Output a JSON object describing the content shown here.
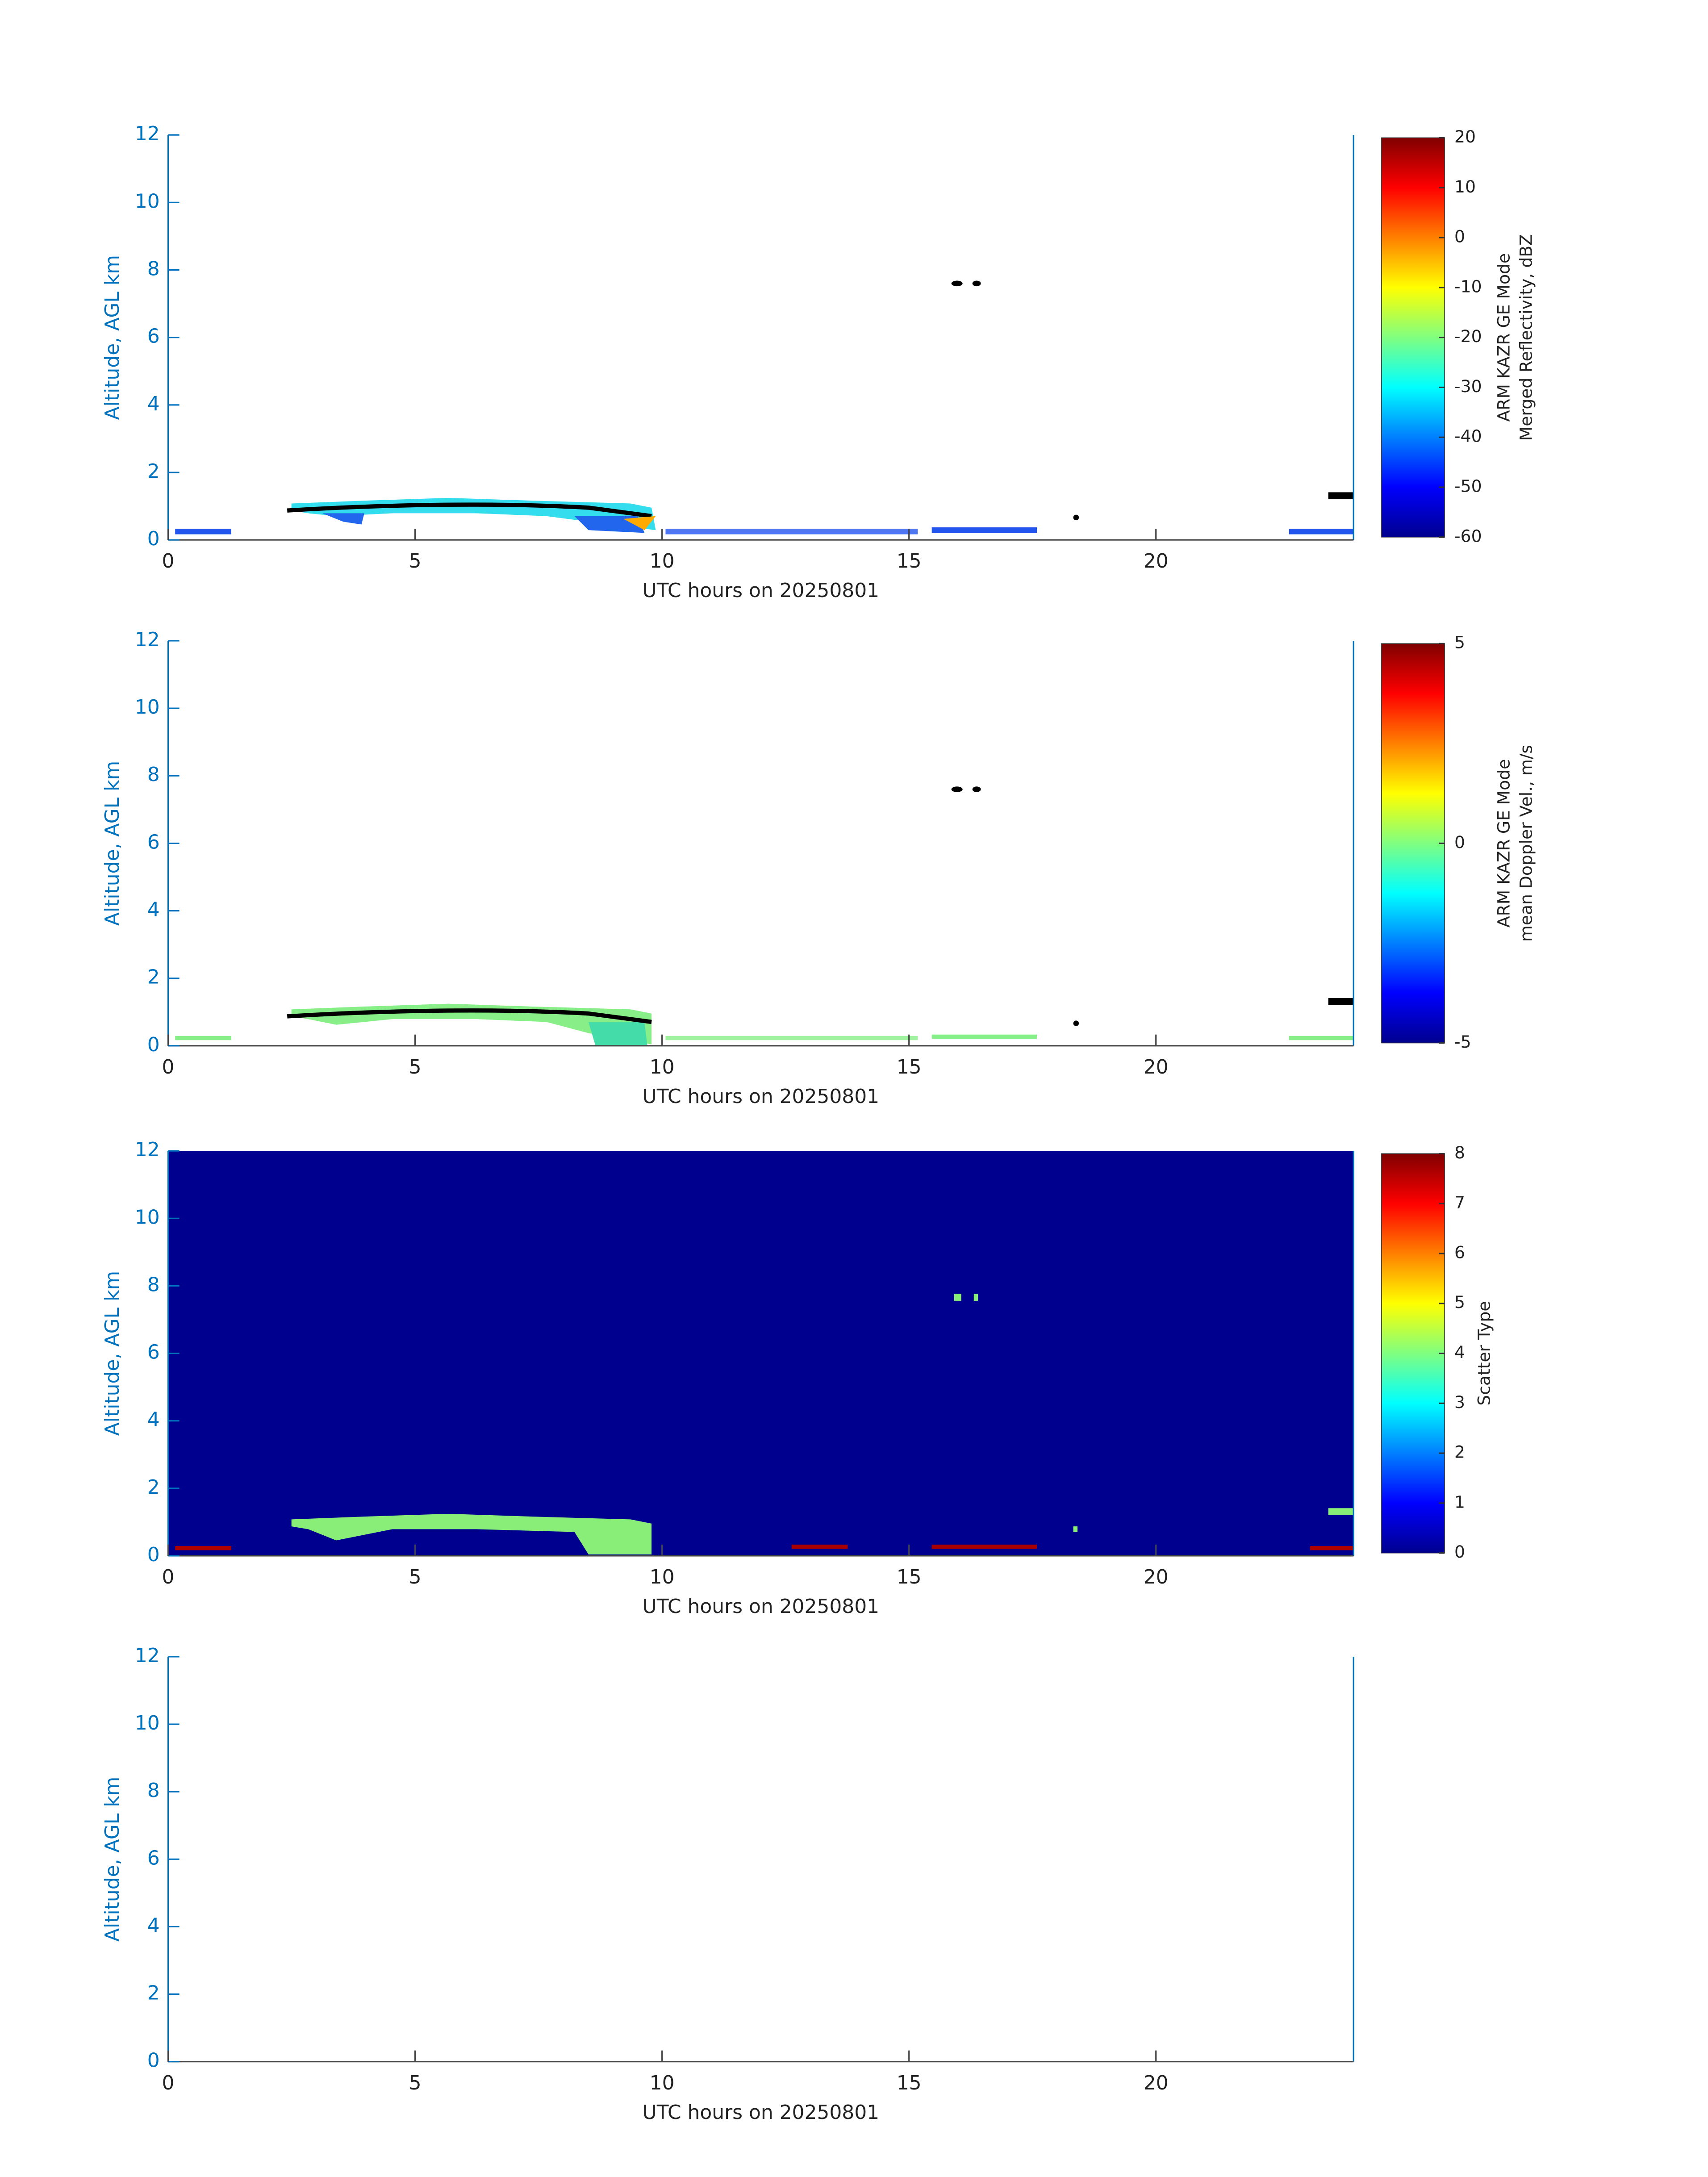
{
  "chart_data": [
    {
      "type": "heatmap",
      "xlabel": "UTC hours on 20250801",
      "ylabel": "Altitude, AGL km",
      "xlim": [
        0,
        24
      ],
      "ylim": [
        0,
        12
      ],
      "xticks": [
        0,
        5,
        10,
        15,
        20
      ],
      "yticks": [
        0,
        2,
        4,
        6,
        8,
        10,
        12
      ],
      "colormap": "jet",
      "colorbar": {
        "label": [
          "ARM KAZR GE Mode",
          "Merged Reflectivity, dBZ"
        ],
        "lim": [
          -60,
          20
        ],
        "ticks": [
          -60,
          -50,
          -40,
          -30,
          -20,
          -10,
          0,
          10,
          20
        ]
      }
    },
    {
      "type": "heatmap",
      "xlabel": "UTC hours on 20250801",
      "ylabel": "Altitude, AGL km",
      "xlim": [
        0,
        24
      ],
      "ylim": [
        0,
        12
      ],
      "xticks": [
        0,
        5,
        10,
        15,
        20
      ],
      "yticks": [
        0,
        2,
        4,
        6,
        8,
        10,
        12
      ],
      "colormap": "jet",
      "colorbar": {
        "label": [
          "ARM KAZR GE Mode",
          "mean Doppler Vel., m/s"
        ],
        "lim": [
          -5,
          5
        ],
        "ticks": [
          -5,
          0,
          5
        ]
      }
    },
    {
      "type": "heatmap",
      "xlabel": "UTC hours on 20250801",
      "ylabel": "Altitude, AGL km",
      "xlim": [
        0,
        24
      ],
      "ylim": [
        0,
        12
      ],
      "xticks": [
        0,
        5,
        10,
        15,
        20
      ],
      "yticks": [
        0,
        2,
        4,
        6,
        8,
        10,
        12
      ],
      "background_color": "#00008f",
      "colormap": "jet",
      "colorbar": {
        "label": [
          "Scatter Type"
        ],
        "lim": [
          0,
          8
        ],
        "ticks": [
          0,
          1,
          2,
          3,
          4,
          5,
          6,
          7,
          8
        ]
      }
    },
    {
      "type": "heatmap",
      "xlabel": "UTC hours on 20250801",
      "ylabel": "Altitude, AGL km",
      "xlim": [
        0,
        24
      ],
      "ylim": [
        0,
        12
      ],
      "xticks": [
        0,
        5,
        10,
        15,
        20
      ],
      "yticks": [
        0,
        2,
        4,
        6,
        8,
        10,
        12
      ]
    }
  ]
}
